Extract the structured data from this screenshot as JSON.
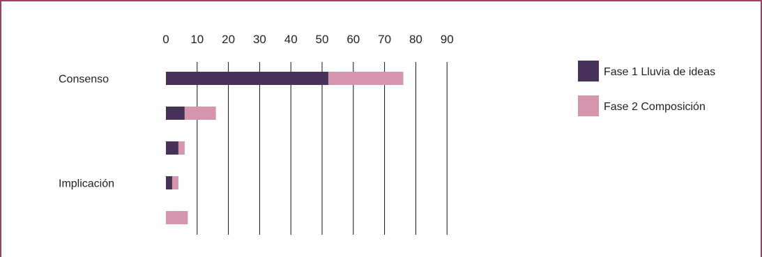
{
  "chart_data": {
    "type": "bar",
    "orientation": "horizontal",
    "stacked": true,
    "title": "",
    "xlabel": "",
    "ylabel": "",
    "xlim": [
      0,
      90
    ],
    "x_ticks": [
      "0",
      "10",
      "20",
      "30",
      "40",
      "50",
      "60",
      "70",
      "80",
      "90"
    ],
    "grid": "vertical",
    "legend_position": "right",
    "categories": [
      "Consenso",
      "",
      "",
      "Implicación",
      ""
    ],
    "series": [
      {
        "name": "Fase 1 Lluvia de ideas",
        "color": "#463259",
        "values": [
          52,
          6,
          4,
          2,
          0
        ]
      },
      {
        "name": "Fase 2 Composición",
        "color": "#d495ad",
        "values": [
          24,
          10,
          2,
          2,
          7
        ]
      }
    ]
  }
}
